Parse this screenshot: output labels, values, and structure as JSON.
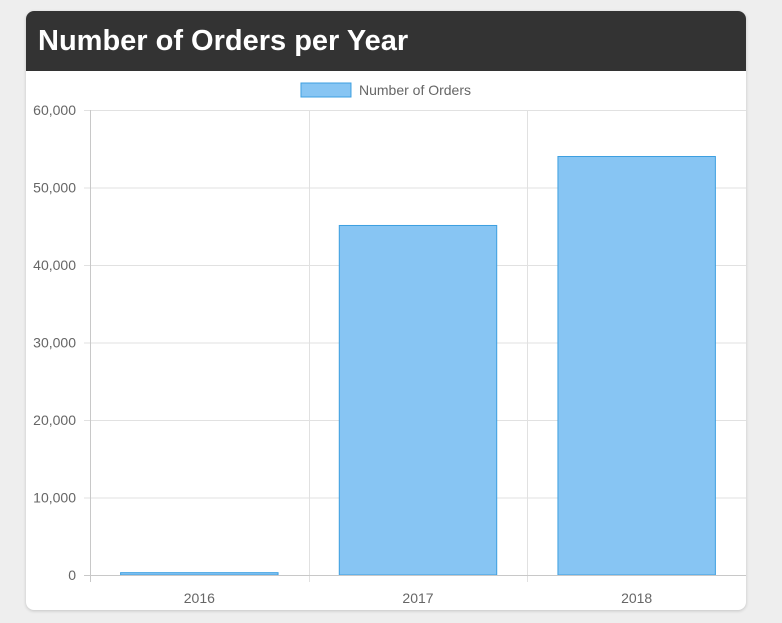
{
  "header": {
    "title": "Number of Orders per Year"
  },
  "chart_data": {
    "type": "bar",
    "categories": [
      "2016",
      "2017",
      "2018"
    ],
    "series": [
      {
        "name": "Number of Orders",
        "values": [
          300,
          45100,
          54000
        ]
      }
    ],
    "ylim": [
      0,
      60000
    ],
    "yticks": [
      0,
      10000,
      20000,
      30000,
      40000,
      50000,
      60000
    ],
    "ytick_labels": [
      "0",
      "10,000",
      "20,000",
      "30,000",
      "40,000",
      "50,000",
      "60,000"
    ],
    "grid": true,
    "legend_position": "top-center",
    "colors": {
      "bar_fill": "#87c5f3",
      "bar_stroke": "#3d9fe0",
      "grid": "#e1e1e1",
      "axis": "#c8c8c8",
      "text": "#666666"
    }
  }
}
